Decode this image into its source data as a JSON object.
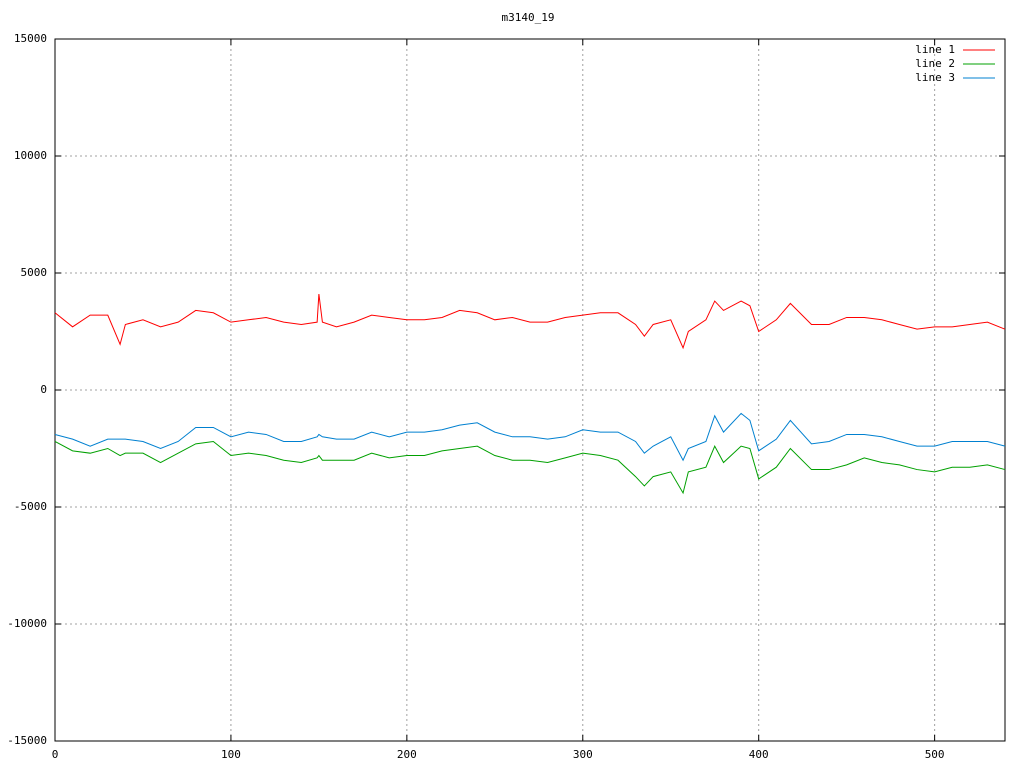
{
  "chart_data": {
    "type": "line",
    "title": "m3140_19",
    "x": [
      0,
      10,
      20,
      30,
      37,
      40,
      50,
      60,
      70,
      80,
      90,
      100,
      110,
      120,
      130,
      140,
      149,
      150,
      152,
      160,
      170,
      180,
      190,
      200,
      210,
      220,
      230,
      240,
      250,
      260,
      270,
      280,
      290,
      300,
      310,
      320,
      330,
      335,
      340,
      350,
      357,
      360,
      370,
      375,
      380,
      390,
      395,
      400,
      410,
      418,
      430,
      440,
      450,
      460,
      470,
      480,
      490,
      500,
      510,
      520,
      530,
      540
    ],
    "series": [
      {
        "name": "line 1",
        "color": "#ff0000",
        "values": [
          3300,
          2700,
          3200,
          3200,
          1950,
          2800,
          3000,
          2700,
          2900,
          3400,
          3300,
          2900,
          3000,
          3100,
          2900,
          2800,
          2900,
          4100,
          2900,
          2700,
          2900,
          3200,
          3100,
          3000,
          3000,
          3100,
          3400,
          3300,
          3000,
          3100,
          2900,
          2900,
          3100,
          3200,
          3300,
          3300,
          2800,
          2300,
          2800,
          3000,
          1800,
          2500,
          3000,
          3800,
          3400,
          3800,
          3600,
          2500,
          3000,
          3700,
          2800,
          2800,
          3100,
          3100,
          3000,
          2800,
          2600,
          2700,
          2700,
          2800,
          2900,
          2600
        ]
      },
      {
        "name": "line 2",
        "color": "#00a000",
        "values": [
          -2200,
          -2600,
          -2700,
          -2500,
          -2800,
          -2700,
          -2700,
          -3100,
          -2700,
          -2300,
          -2200,
          -2800,
          -2700,
          -2800,
          -3000,
          -3100,
          -2900,
          -2800,
          -3000,
          -3000,
          -3000,
          -2700,
          -2900,
          -2800,
          -2800,
          -2600,
          -2500,
          -2400,
          -2800,
          -3000,
          -3000,
          -3100,
          -2900,
          -2700,
          -2800,
          -3000,
          -3700,
          -4100,
          -3700,
          -3500,
          -4400,
          -3500,
          -3300,
          -2400,
          -3100,
          -2400,
          -2500,
          -3800,
          -3300,
          -2500,
          -3400,
          -3400,
          -3200,
          -2900,
          -3100,
          -3200,
          -3400,
          -3500,
          -3300,
          -3300,
          -3200,
          -3400
        ]
      },
      {
        "name": "line 3",
        "color": "#0080d0",
        "values": [
          -1900,
          -2100,
          -2400,
          -2100,
          -2100,
          -2100,
          -2200,
          -2500,
          -2200,
          -1600,
          -1600,
          -2000,
          -1800,
          -1900,
          -2200,
          -2200,
          -2000,
          -1900,
          -2000,
          -2100,
          -2100,
          -1800,
          -2000,
          -1800,
          -1800,
          -1700,
          -1500,
          -1400,
          -1800,
          -2000,
          -2000,
          -2100,
          -2000,
          -1700,
          -1800,
          -1800,
          -2200,
          -2700,
          -2400,
          -2000,
          -3000,
          -2500,
          -2200,
          -1100,
          -1800,
          -1000,
          -1300,
          -2600,
          -2100,
          -1300,
          -2300,
          -2200,
          -1900,
          -1900,
          -2000,
          -2200,
          -2400,
          -2400,
          -2200,
          -2200,
          -2200,
          -2400
        ]
      }
    ],
    "xlim": [
      0,
      540
    ],
    "xticks": [
      0,
      100,
      200,
      300,
      400,
      500
    ],
    "ylim": [
      -15000,
      15000
    ],
    "yticks": [
      -15000,
      -10000,
      -5000,
      0,
      5000,
      10000,
      15000
    ],
    "grid": true,
    "legend": "top-right"
  }
}
